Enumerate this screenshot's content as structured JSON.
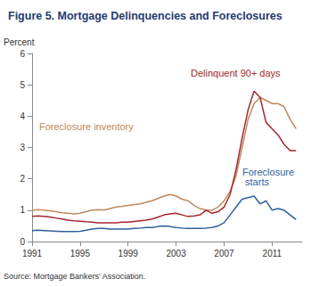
{
  "chart_data": {
    "type": "line",
    "title": "Figure 5. Mortgage Delinquencies and Foreclosures",
    "y_label": "Percent",
    "source": "Source: Mortgage Bankers' Association.",
    "x": [
      1991,
      1991.5,
      1992,
      1992.5,
      1993,
      1993.5,
      1994,
      1994.5,
      1995,
      1995.5,
      1996,
      1996.5,
      1997,
      1997.5,
      1998,
      1998.5,
      1999,
      1999.5,
      2000,
      2000.5,
      2001,
      2001.5,
      2002,
      2002.5,
      2003,
      2003.5,
      2004,
      2004.5,
      2005,
      2005.5,
      2006,
      2006.5,
      2007,
      2007.5,
      2008,
      2008.5,
      2009,
      2009.5,
      2010,
      2010.5,
      2011,
      2011.5,
      2012,
      2012.5,
      2013
    ],
    "series": [
      {
        "name": "Foreclosure inventory",
        "color": "#c0885a",
        "values": [
          1.0,
          1.02,
          1.0,
          0.98,
          0.95,
          0.92,
          0.9,
          0.88,
          0.9,
          0.95,
          1.0,
          1.02,
          1.0,
          1.05,
          1.1,
          1.12,
          1.15,
          1.18,
          1.2,
          1.25,
          1.3,
          1.38,
          1.45,
          1.5,
          1.45,
          1.35,
          1.3,
          1.15,
          1.05,
          1.0,
          1.0,
          1.1,
          1.3,
          1.6,
          2.1,
          3.0,
          3.9,
          4.4,
          4.6,
          4.5,
          4.4,
          4.4,
          4.3,
          3.9,
          3.6
        ]
      },
      {
        "name": "Delinquent 90+ days",
        "color": "#a3282c",
        "values": [
          0.8,
          0.82,
          0.8,
          0.78,
          0.75,
          0.72,
          0.68,
          0.66,
          0.65,
          0.63,
          0.62,
          0.6,
          0.6,
          0.6,
          0.6,
          0.62,
          0.62,
          0.64,
          0.66,
          0.68,
          0.72,
          0.78,
          0.85,
          0.88,
          0.9,
          0.85,
          0.8,
          0.82,
          0.85,
          1.0,
          0.9,
          0.95,
          1.1,
          1.5,
          2.3,
          3.3,
          4.2,
          4.8,
          4.6,
          3.8,
          3.6,
          3.4,
          3.1,
          2.9,
          2.9
        ]
      },
      {
        "name": "Foreclosure starts",
        "color": "#2f5f9e",
        "values": [
          0.35,
          0.36,
          0.35,
          0.34,
          0.33,
          0.32,
          0.32,
          0.32,
          0.33,
          0.36,
          0.4,
          0.42,
          0.42,
          0.4,
          0.4,
          0.4,
          0.4,
          0.42,
          0.43,
          0.45,
          0.45,
          0.48,
          0.5,
          0.48,
          0.45,
          0.43,
          0.42,
          0.42,
          0.42,
          0.43,
          0.45,
          0.5,
          0.6,
          0.85,
          1.1,
          1.35,
          1.4,
          1.45,
          1.2,
          1.3,
          1.0,
          1.05,
          1.0,
          0.85,
          0.7
        ]
      }
    ],
    "xlim": [
      1991,
      2013.5
    ],
    "xticks": [
      1991,
      1995,
      1999,
      2003,
      2007,
      2011
    ],
    "ylim": [
      0,
      6
    ],
    "yticks": [
      0,
      1,
      2,
      3,
      4,
      5,
      6
    ],
    "grid": false
  }
}
